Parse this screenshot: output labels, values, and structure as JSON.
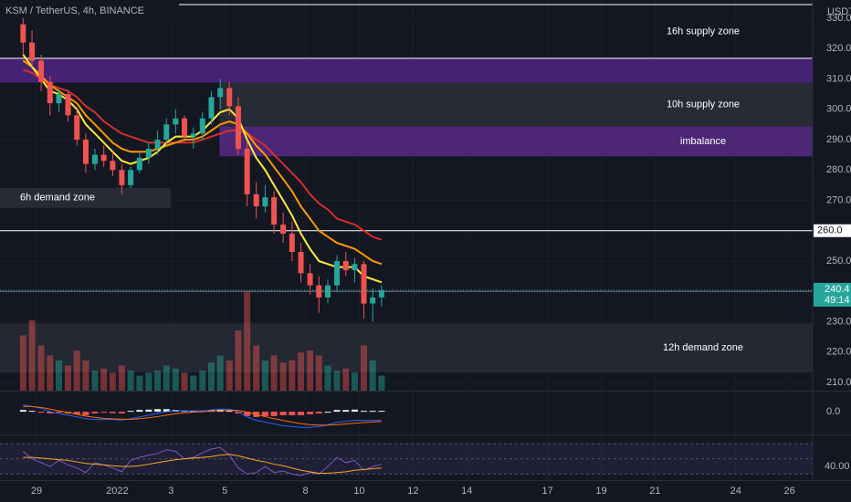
{
  "chart_data": {
    "type": "candlestick",
    "title": "KSM / TetherUS, 4h, BINANCE",
    "unit": "USDT",
    "x": [
      -0.5,
      -0.17,
      0.17,
      0.5,
      0.83,
      1.17,
      1.5,
      1.83,
      2.17,
      2.5,
      2.83,
      3.17,
      3.5,
      3.83,
      4.17,
      4.5,
      4.83,
      5.17,
      5.5,
      5.83,
      6.17,
      6.5,
      6.83,
      7.17,
      7.5,
      7.83,
      8.17,
      8.5,
      8.83,
      9.17,
      9.5,
      9.83,
      10.17,
      10.5,
      10.83,
      11.17,
      11.5,
      11.83,
      12.17,
      12.5,
      12.83
    ],
    "open": [
      328,
      322,
      316,
      309,
      302,
      305,
      298,
      290,
      282,
      285,
      283,
      280,
      275,
      280,
      284,
      287,
      290,
      295,
      297,
      291,
      292,
      297,
      304,
      307,
      301,
      287,
      272,
      268,
      271,
      262,
      259,
      253,
      246,
      242,
      238,
      242,
      250,
      247,
      249,
      236,
      238
    ],
    "high": [
      332,
      326,
      318,
      311,
      307,
      306,
      300,
      292,
      287,
      288,
      286,
      282,
      281,
      286,
      289,
      293,
      297,
      300,
      298,
      294,
      299,
      306,
      310,
      309,
      304,
      289,
      276,
      275,
      273,
      266,
      263,
      256,
      249,
      245,
      244,
      252,
      253,
      251,
      250,
      241,
      242
    ],
    "low": [
      318,
      314,
      306,
      298,
      299,
      296,
      288,
      279,
      280,
      281,
      278,
      272,
      274,
      279,
      282,
      285,
      288,
      292,
      289,
      287,
      290,
      295,
      300,
      298,
      285,
      268,
      264,
      266,
      259,
      256,
      250,
      243,
      239,
      233,
      236,
      240,
      245,
      243,
      231,
      230,
      235
    ],
    "close": [
      322,
      316,
      309,
      302,
      305,
      298,
      290,
      282,
      285,
      283,
      280,
      275,
      280,
      284,
      287,
      290,
      295,
      297,
      291,
      292,
      297,
      304,
      307,
      301,
      287,
      272,
      268,
      271,
      262,
      259,
      253,
      246,
      242,
      238,
      242,
      250,
      247,
      249,
      236,
      238,
      240.4
    ],
    "up_color": "#26a69a",
    "down_color": "#ef5350",
    "volume": [
      55,
      70,
      45,
      35,
      30,
      25,
      40,
      30,
      20,
      22,
      18,
      25,
      20,
      15,
      18,
      20,
      25,
      22,
      18,
      15,
      20,
      28,
      35,
      30,
      60,
      98,
      45,
      30,
      35,
      28,
      30,
      38,
      40,
      35,
      25,
      20,
      22,
      18,
      45,
      30,
      15
    ],
    "emas": [
      {
        "color": "#d32f2f",
        "values": [
          313,
          312,
          310,
          308,
          307,
          306,
          304,
          301,
          299,
          296,
          294,
          292,
          291,
          290,
          289,
          289,
          289,
          289,
          289,
          289,
          290,
          291,
          292,
          293,
          293,
          292,
          290,
          288,
          285,
          282,
          279,
          276,
          272,
          269,
          267,
          264,
          263,
          262,
          260,
          258,
          257
        ]
      },
      {
        "color": "#ff9800",
        "values": [
          316,
          314,
          311,
          308,
          306,
          304,
          302,
          298,
          295,
          292,
          289,
          287,
          286,
          286,
          286,
          287,
          288,
          289,
          290,
          290,
          291,
          293,
          295,
          296,
          295,
          292,
          288,
          285,
          281,
          277,
          273,
          268,
          264,
          260,
          258,
          256,
          255,
          254,
          252,
          250,
          249
        ]
      },
      {
        "color": "#ffeb3b",
        "values": [
          318,
          314,
          310,
          306,
          305,
          303,
          300,
          295,
          292,
          289,
          286,
          283,
          282,
          283,
          284,
          286,
          289,
          291,
          291,
          291,
          293,
          296,
          299,
          300,
          297,
          290,
          284,
          280,
          275,
          270,
          265,
          259,
          254,
          250,
          249,
          248,
          248,
          248,
          245,
          244,
          243
        ]
      }
    ],
    "xlim": [
      -1.36,
      28.86
    ],
    "xticks": [
      {
        "value": 0,
        "label": "29"
      },
      {
        "value": 3,
        "label": "2022"
      },
      {
        "value": 5,
        "label": "3"
      },
      {
        "value": 7,
        "label": "5"
      },
      {
        "value": 10,
        "label": "8"
      },
      {
        "value": 12,
        "label": "10"
      },
      {
        "value": 14,
        "label": "12"
      },
      {
        "value": 16,
        "label": "14"
      },
      {
        "value": 19,
        "label": "17"
      },
      {
        "value": 21,
        "label": "19"
      },
      {
        "value": 23,
        "label": "21"
      },
      {
        "value": 26,
        "label": "24"
      },
      {
        "value": 28,
        "label": "26"
      }
    ],
    "ylim": [
      207.3,
      336.0
    ],
    "yticks": [
      {
        "value": 210,
        "label": "210.0"
      },
      {
        "value": 220,
        "label": "220.0"
      },
      {
        "value": 230,
        "label": "230.0"
      },
      {
        "value": 250,
        "label": "250.0"
      },
      {
        "value": 270,
        "label": "270.0"
      },
      {
        "value": 280,
        "label": "280.0"
      },
      {
        "value": 290,
        "label": "290.0"
      },
      {
        "value": 300,
        "label": "300.0"
      },
      {
        "value": 310,
        "label": "310.0"
      },
      {
        "value": 320,
        "label": "320.0"
      },
      {
        "value": 330,
        "label": "330.0"
      }
    ],
    "levels": [
      334.5,
      316.8,
      {
        "value": 260,
        "label": "260.0"
      },
      {
        "value": 240,
        "label": "240.0"
      }
    ],
    "last_price": 240.4,
    "countdown": "49:14",
    "zones": [
      {
        "top": 334.5,
        "bottom": 316.8,
        "label": "16h supply zone",
        "color": "none"
      },
      {
        "top": 316.8,
        "bottom": 308.8,
        "color": "#4b237c"
      },
      {
        "top": 308.8,
        "bottom": 294.3,
        "from": 6.8,
        "label": "10h supply zone",
        "color": "#2a2e39"
      },
      {
        "top": 294.3,
        "bottom": 284.5,
        "from": 6.8,
        "label": "imbalance",
        "color": "#55287f"
      },
      {
        "top": 274.1,
        "bottom": 267.5,
        "to": 4.98,
        "label": "6h demand zone",
        "color": "#2a2e39"
      },
      {
        "top": 229.5,
        "bottom": 213.3,
        "label": "12h demand zone",
        "color": "#262a35"
      }
    ],
    "macd": {
      "ylim": [
        -12,
        10
      ],
      "yticks": [
        {
          "value": 0,
          "label": "0.0"
        }
      ],
      "histogram": [
        1,
        0.5,
        -0.5,
        -1,
        -0.5,
        -1,
        -1.5,
        -2,
        -1,
        -0.5,
        -0.8,
        -1,
        0.5,
        1,
        1.2,
        1.5,
        1.5,
        1,
        0.5,
        0.3,
        0.5,
        1,
        1.2,
        0.5,
        -1,
        -2.5,
        -3,
        -2.5,
        -2.5,
        -2,
        -2,
        -2,
        -1.5,
        -1,
        0,
        1,
        1,
        1.2,
        0.5,
        0.5,
        0.5
      ],
      "lines": [
        {
          "color": "#2962ff",
          "values": [
            4,
            3,
            2,
            0,
            -1,
            -2,
            -3,
            -4,
            -4.5,
            -4.5,
            -4.5,
            -4.8,
            -4,
            -3,
            -2,
            -1,
            0,
            0.5,
            0.5,
            0.5,
            0.5,
            1,
            1.5,
            1.5,
            0,
            -3,
            -5,
            -6,
            -7,
            -8,
            -8.5,
            -9,
            -9,
            -8.5,
            -7.5,
            -6,
            -5.5,
            -5,
            -5,
            -5,
            -4.8
          ]
        },
        {
          "color": "#ff6d00",
          "values": [
            3,
            3,
            2.5,
            1.5,
            0.5,
            -0.5,
            -1.5,
            -2.5,
            -3.2,
            -3.8,
            -4.1,
            -4.3,
            -4.4,
            -4,
            -3.5,
            -2.8,
            -2,
            -1.2,
            -0.6,
            -0.2,
            0,
            0.3,
            0.6,
            0.9,
            0.8,
            -0.2,
            -1.5,
            -2.8,
            -4,
            -5,
            -6,
            -6.8,
            -7.4,
            -7.7,
            -7.7,
            -7.4,
            -7,
            -6.6,
            -6.2,
            -5.9,
            -5.6
          ]
        }
      ]
    },
    "rsi": {
      "ylim": [
        22,
        81
      ],
      "yticks": [
        {
          "value": 40,
          "label": "40.00"
        }
      ],
      "bands": [
        70,
        50,
        30
      ],
      "lines": [
        {
          "color": "#7e57c2",
          "values": [
            60,
            50,
            45,
            40,
            48,
            42,
            38,
            32,
            45,
            42,
            38,
            33,
            48,
            52,
            55,
            57,
            62,
            60,
            50,
            52,
            58,
            63,
            65,
            55,
            38,
            30,
            32,
            40,
            32,
            34,
            30,
            28,
            32,
            30,
            40,
            52,
            45,
            48,
            35,
            40,
            43
          ]
        },
        {
          "color": "#f9a825",
          "values": [
            52,
            52,
            51,
            50,
            49,
            48,
            46,
            44,
            43,
            42,
            41,
            40,
            40,
            41,
            43,
            45,
            47,
            49,
            50,
            51,
            52,
            53,
            55,
            56,
            54,
            51,
            48,
            46,
            43,
            41,
            38,
            35,
            33,
            31,
            31,
            32,
            33,
            35,
            36,
            37,
            38
          ]
        }
      ]
    }
  }
}
